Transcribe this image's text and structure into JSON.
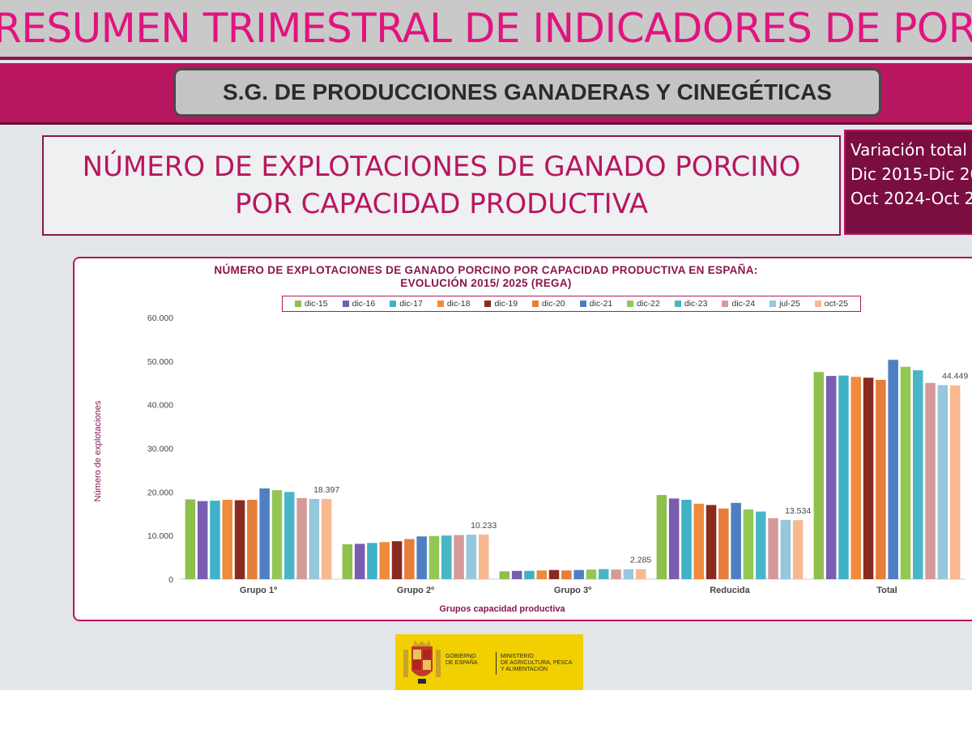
{
  "header": {
    "main_title": "RESUMEN TRIMESTRAL DE INDICADORES DE PORCINO",
    "subtitle": "S.G. DE PRODUCCIONES GANADERAS Y CINEGÉTICAS"
  },
  "section": {
    "title_line1": "NÚMERO DE EXPLOTACIONES DE GANADO PORCINO",
    "title_line2": "POR CAPACIDAD PRODUCTIVA"
  },
  "variation": {
    "line1": "Variación total",
    "line2": "Dic 2015-Dic 20",
    "line3": "Oct 2024-Oct 2"
  },
  "logo": {
    "left_text_1": "GOBIERNO",
    "left_text_2": "DE ESPAÑA",
    "right_text_1": "MINISTERIO",
    "right_text_2": "DE AGRICULTURA, PESCA",
    "right_text_3": "Y ALIMENTACIÓN"
  },
  "chart_data": {
    "type": "bar",
    "title_line1": "NÚMERO DE EXPLOTACIONES DE GANADO PORCINO POR CAPACIDAD PRODUCTIVA EN ESPAÑA:",
    "title_line2": "EVOLUCIÓN 2015/ 2025 (REGA)",
    "xlabel": "Grupos capacidad productiva",
    "ylabel": "Número de explotaciones",
    "ylim": [
      0,
      60000
    ],
    "yticks": [
      "0",
      "10.000",
      "20.000",
      "30.000",
      "40.000",
      "50.000",
      "60.000"
    ],
    "grid": false,
    "legend_position": "top",
    "categories": [
      "Grupo 1º",
      "Grupo 2º",
      "Grupo 3º",
      "Reducida",
      "Total"
    ],
    "series": [
      {
        "name": "dic-15",
        "color": "#8fbf4d",
        "values": [
          18300,
          8000,
          1800,
          19300,
          47500
        ]
      },
      {
        "name": "dic-16",
        "color": "#7a5cb0",
        "values": [
          17900,
          8100,
          1900,
          18500,
          46600
        ]
      },
      {
        "name": "dic-17",
        "color": "#3fb2c8",
        "values": [
          18000,
          8300,
          1900,
          18200,
          46700
        ]
      },
      {
        "name": "dic-18",
        "color": "#f08a3c",
        "values": [
          18200,
          8500,
          2000,
          17300,
          46400
        ]
      },
      {
        "name": "dic-19",
        "color": "#8a2a1e",
        "values": [
          18100,
          8700,
          2100,
          17000,
          46200
        ]
      },
      {
        "name": "dic-20",
        "color": "#e47e3a",
        "values": [
          18200,
          9200,
          2000,
          16200,
          45700
        ]
      },
      {
        "name": "dic-21",
        "color": "#4f7fc2",
        "values": [
          20800,
          9800,
          2100,
          17500,
          50300
        ]
      },
      {
        "name": "dic-22",
        "color": "#92c756",
        "values": [
          20400,
          9900,
          2200,
          16000,
          48700
        ]
      },
      {
        "name": "dic-23",
        "color": "#4bb5c8",
        "values": [
          20000,
          10000,
          2300,
          15500,
          47900
        ]
      },
      {
        "name": "dic-24",
        "color": "#d49a9a",
        "values": [
          18600,
          10100,
          2200,
          14000,
          45000
        ]
      },
      {
        "name": "jul-25",
        "color": "#96c7dc",
        "values": [
          18400,
          10200,
          2250,
          13600,
          44500
        ]
      },
      {
        "name": "oct-25",
        "color": "#f8b991",
        "values": [
          18397,
          10233,
          2285,
          13534,
          44449
        ]
      }
    ],
    "data_labels": [
      "18.397",
      "10.233",
      "2.285",
      "13.534",
      "44.449"
    ]
  }
}
